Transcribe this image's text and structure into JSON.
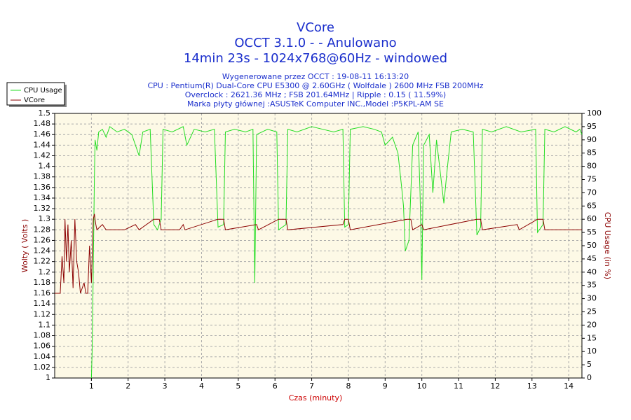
{
  "chart_data": {
    "type": "line",
    "title": "VCore",
    "subtitle": [
      "OCCT 3.1.0 -  - Anulowano",
      "14min 23s - 1024x768@60Hz - windowed"
    ],
    "info": [
      "Wygenerowane przez OCCT : 19-08-11 16:13:20",
      "CPU : Pentium(R) Dual-Core CPU E5300 @ 2.60GHz ( Wolfdale ) 2600 MHz FSB 200MHz",
      "Overclock : 2621.36 MHz ; FSB 201.64MHz | Ripple : 0.15 ( 11.59%)",
      "Marka płyty głównej :ASUSTeK Computer INC.,Model :P5KPL-AM SE"
    ],
    "xlabel": "Czas (minuty)",
    "ylabel": "Wolty ( Volts )",
    "y2label": "CPU Usage (in %)",
    "xlim": [
      0,
      14.36
    ],
    "xticks": [
      1,
      2,
      3,
      4,
      5,
      6,
      7,
      8,
      9,
      10,
      11,
      12,
      13,
      14
    ],
    "ylim": [
      1,
      1.5
    ],
    "yticks": [
      1,
      1.02,
      1.04,
      1.06,
      1.08,
      1.1,
      1.12,
      1.14,
      1.16,
      1.18,
      1.2,
      1.22,
      1.24,
      1.26,
      1.28,
      1.3,
      1.32,
      1.34,
      1.36,
      1.38,
      1.4,
      1.42,
      1.44,
      1.46,
      1.48,
      1.5
    ],
    "y2lim": [
      0,
      100
    ],
    "y2ticks": [
      0,
      5,
      10,
      15,
      20,
      25,
      30,
      35,
      40,
      45,
      50,
      55,
      60,
      65,
      70,
      75,
      80,
      85,
      90,
      95,
      100
    ],
    "grid": true,
    "legend": "upper left",
    "series": [
      {
        "name": "CPU Usage",
        "color": "#22dd22",
        "axis": "y2",
        "x": [
          1.0,
          1.02,
          1.05,
          1.08,
          1.1,
          1.15,
          1.2,
          1.3,
          1.4,
          1.5,
          1.7,
          1.9,
          2.1,
          2.3,
          2.4,
          2.6,
          2.7,
          2.8,
          2.9,
          2.95,
          3.2,
          3.5,
          3.6,
          3.8,
          4.1,
          4.35,
          4.45,
          4.6,
          4.65,
          4.9,
          5.2,
          5.4,
          5.45,
          5.5,
          5.8,
          6.05,
          6.1,
          6.3,
          6.35,
          6.6,
          7.0,
          7.3,
          7.6,
          7.85,
          7.9,
          8.0,
          8.05,
          8.4,
          8.7,
          8.9,
          9.0,
          9.2,
          9.35,
          9.45,
          9.5,
          9.55,
          9.65,
          9.75,
          9.9,
          9.95,
          10.0,
          10.05,
          10.2,
          10.3,
          10.4,
          10.6,
          10.7,
          10.8,
          11.1,
          11.4,
          11.5,
          11.6,
          11.65,
          11.9,
          12.3,
          12.7,
          13.1,
          13.15,
          13.3,
          13.35,
          13.6,
          13.9,
          14.2,
          14.3,
          14.36
        ],
        "values": [
          0,
          10,
          40,
          75,
          90,
          86,
          93,
          94,
          91,
          95,
          93,
          94,
          92,
          84,
          93,
          94,
          58,
          56,
          60,
          94,
          93,
          95,
          88,
          94,
          93,
          94,
          57,
          58,
          93,
          94,
          93,
          94,
          36,
          92,
          94,
          93,
          56,
          58,
          94,
          93,
          95,
          94,
          93,
          94,
          57,
          58,
          94,
          95,
          94,
          93,
          88,
          91,
          85,
          72,
          65,
          48,
          52,
          88,
          93,
          70,
          37,
          88,
          92,
          70,
          90,
          66,
          80,
          93,
          94,
          93,
          54,
          57,
          94,
          93,
          95,
          93,
          94,
          55,
          58,
          94,
          93,
          95,
          93,
          94,
          92
        ]
      },
      {
        "name": "VCore",
        "color": "#8b0000",
        "x": [
          0,
          0.15,
          0.18,
          0.2,
          0.25,
          0.28,
          0.32,
          0.36,
          0.4,
          0.45,
          0.5,
          0.55,
          0.6,
          0.65,
          0.7,
          0.8,
          0.85,
          0.9,
          0.95,
          1.0,
          1.05,
          1.08,
          1.12,
          1.15,
          1.3,
          1.4,
          1.9,
          2.2,
          2.3,
          2.7,
          2.85,
          2.9,
          3.4,
          3.5,
          3.55,
          4.45,
          4.6,
          4.65,
          5.5,
          5.55,
          6.1,
          6.3,
          6.35,
          7.85,
          7.9,
          8.0,
          8.05,
          9.6,
          9.7,
          9.75,
          10.0,
          10.05,
          11.5,
          11.6,
          11.65,
          12.6,
          12.65,
          13.15,
          13.3,
          13.35,
          14.36
        ],
        "values": [
          1.16,
          1.16,
          1.2,
          1.23,
          1.18,
          1.3,
          1.22,
          1.29,
          1.2,
          1.26,
          1.17,
          1.3,
          1.22,
          1.2,
          1.16,
          1.18,
          1.16,
          1.16,
          1.25,
          1.18,
          1.3,
          1.31,
          1.29,
          1.28,
          1.29,
          1.28,
          1.28,
          1.29,
          1.28,
          1.3,
          1.3,
          1.28,
          1.28,
          1.29,
          1.28,
          1.3,
          1.3,
          1.28,
          1.29,
          1.28,
          1.3,
          1.3,
          1.28,
          1.29,
          1.3,
          1.3,
          1.28,
          1.3,
          1.3,
          1.28,
          1.29,
          1.28,
          1.3,
          1.3,
          1.28,
          1.29,
          1.28,
          1.3,
          1.3,
          1.28,
          1.28
        ]
      }
    ]
  }
}
